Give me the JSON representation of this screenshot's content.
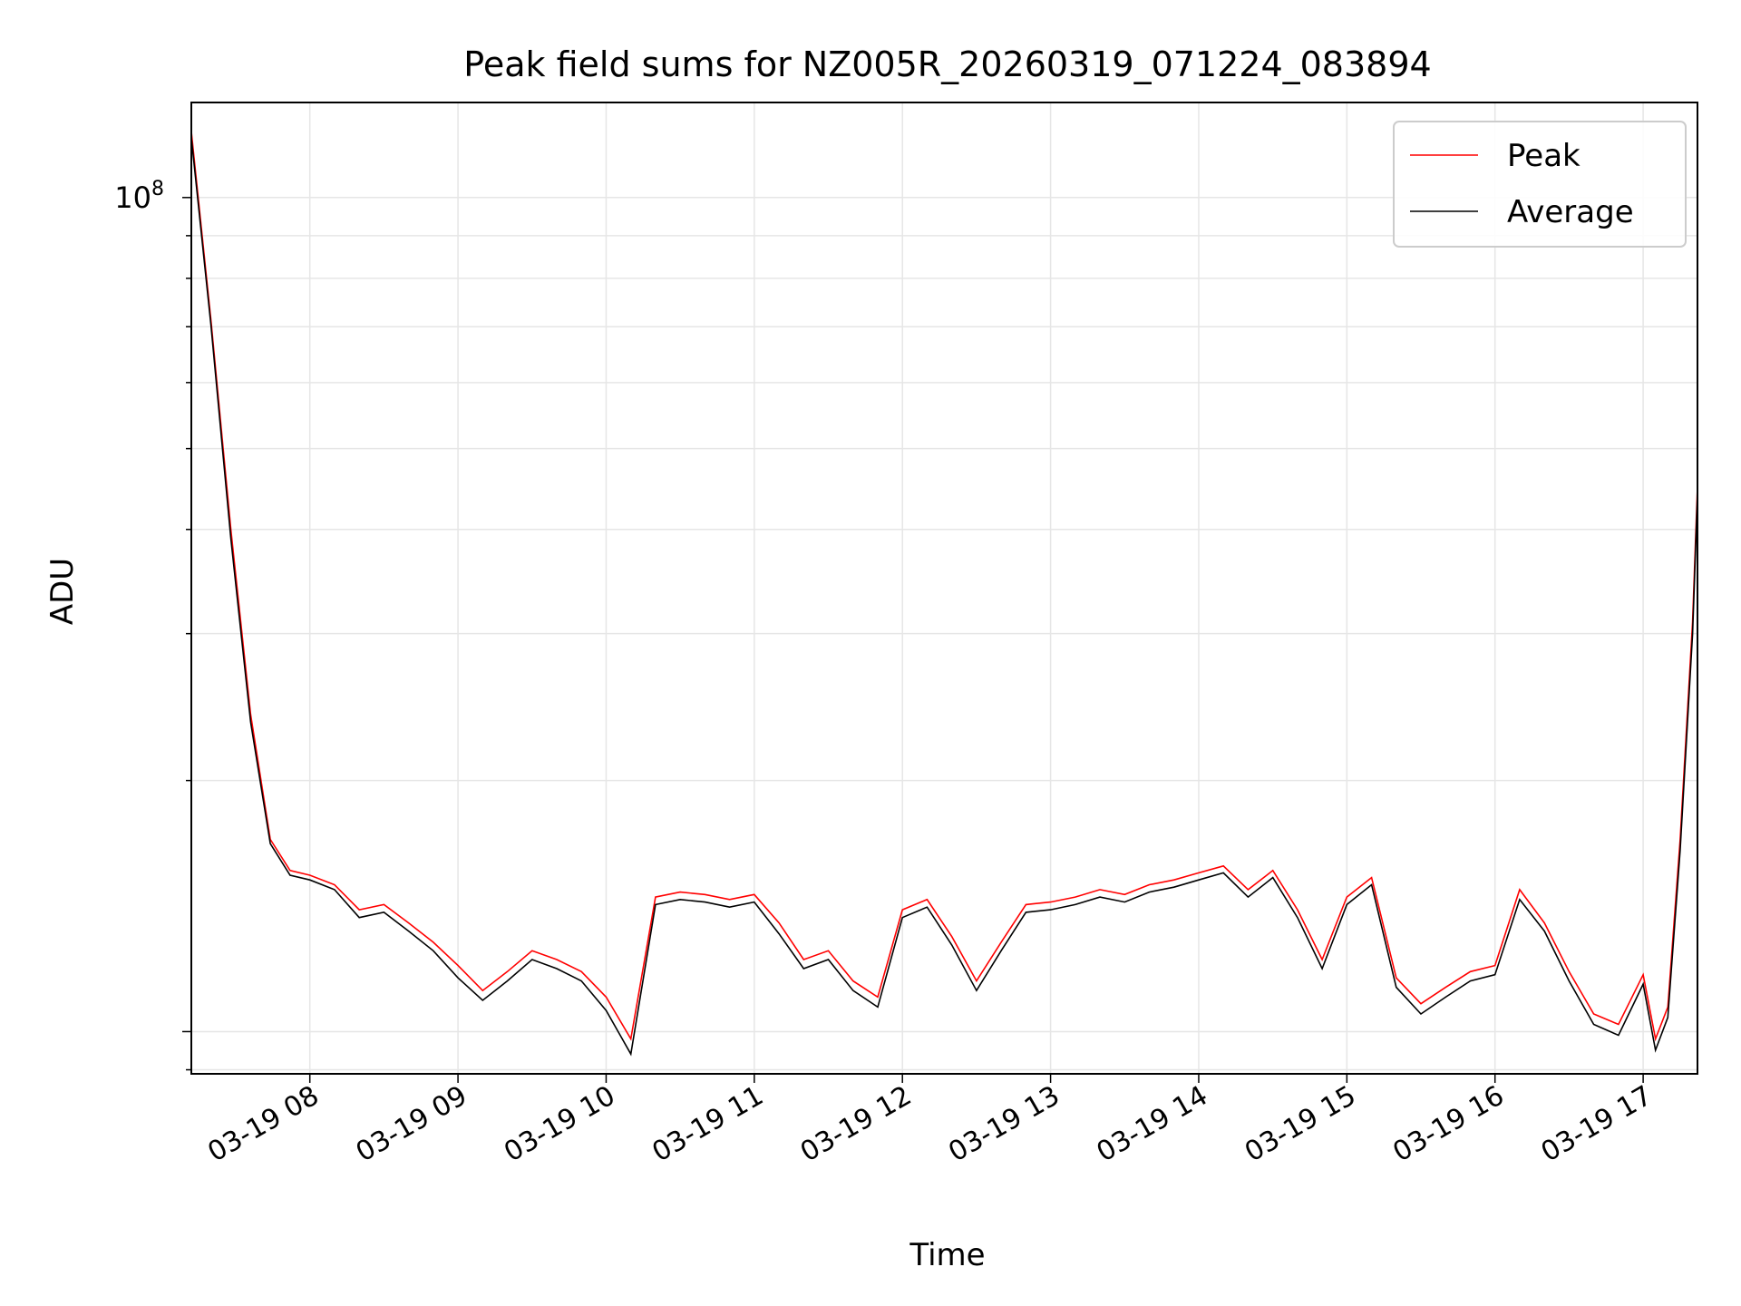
{
  "chart_data": {
    "type": "line",
    "title": "Peak field sums for NZ005R_20260319_071224_083894",
    "xlabel": "Time",
    "ylabel": "ADU",
    "xlim": [
      "2026-03-19 07:12",
      "2026-03-19 17:22"
    ],
    "ylim": [
      8900000,
      130000000
    ],
    "yscale": "log",
    "grid": true,
    "legend_position": "top-right",
    "x_ticks": [
      "03-19 08",
      "03-19 09",
      "03-19 10",
      "03-19 11",
      "03-19 12",
      "03-19 13",
      "03-19 14",
      "03-19 15",
      "03-19 16",
      "03-19 17"
    ],
    "y_ticks": [
      {
        "value": 100000000,
        "base": "10",
        "exp": "8"
      }
    ],
    "x": [
      "2026-03-19 07:12",
      "2026-03-19 07:20",
      "2026-03-19 07:28",
      "2026-03-19 07:36",
      "2026-03-19 07:44",
      "2026-03-19 07:52",
      "2026-03-19 08:00",
      "2026-03-19 08:10",
      "2026-03-19 08:20",
      "2026-03-19 08:30",
      "2026-03-19 08:40",
      "2026-03-19 08:50",
      "2026-03-19 09:00",
      "2026-03-19 09:10",
      "2026-03-19 09:20",
      "2026-03-19 09:30",
      "2026-03-19 09:40",
      "2026-03-19 09:50",
      "2026-03-19 10:00",
      "2026-03-19 10:10",
      "2026-03-19 10:20",
      "2026-03-19 10:30",
      "2026-03-19 10:40",
      "2026-03-19 10:50",
      "2026-03-19 11:00",
      "2026-03-19 11:10",
      "2026-03-19 11:20",
      "2026-03-19 11:30",
      "2026-03-19 11:40",
      "2026-03-19 11:50",
      "2026-03-19 12:00",
      "2026-03-19 12:10",
      "2026-03-19 12:20",
      "2026-03-19 12:30",
      "2026-03-19 12:40",
      "2026-03-19 12:50",
      "2026-03-19 13:00",
      "2026-03-19 13:10",
      "2026-03-19 13:20",
      "2026-03-19 13:30",
      "2026-03-19 13:40",
      "2026-03-19 13:50",
      "2026-03-19 14:00",
      "2026-03-19 14:10",
      "2026-03-19 14:20",
      "2026-03-19 14:30",
      "2026-03-19 14:40",
      "2026-03-19 14:50",
      "2026-03-19 15:00",
      "2026-03-19 15:10",
      "2026-03-19 15:20",
      "2026-03-19 15:30",
      "2026-03-19 15:40",
      "2026-03-19 15:50",
      "2026-03-19 16:00",
      "2026-03-19 16:10",
      "2026-03-19 16:20",
      "2026-03-19 16:30",
      "2026-03-19 16:40",
      "2026-03-19 16:50",
      "2026-03-19 17:00",
      "2026-03-19 17:05",
      "2026-03-19 17:10",
      "2026-03-19 17:15",
      "2026-03-19 17:20",
      "2026-03-19 17:22"
    ],
    "series": [
      {
        "name": "Peak",
        "color": "#ff0000",
        "values": [
          120000000,
          71000000,
          40000000,
          24000000,
          17000000,
          15600000,
          15400000,
          15000000,
          14000000,
          14200000,
          13500000,
          12800000,
          12000000,
          11200000,
          11800000,
          12500000,
          12200000,
          11800000,
          11000000,
          9800000,
          14500000,
          14700000,
          14600000,
          14400000,
          14600000,
          13500000,
          12200000,
          12500000,
          11500000,
          11000000,
          14000000,
          14400000,
          13000000,
          11500000,
          12800000,
          14200000,
          14300000,
          14500000,
          14800000,
          14600000,
          15000000,
          15200000,
          15500000,
          15800000,
          14800000,
          15600000,
          14000000,
          12200000,
          14500000,
          15300000,
          11600000,
          10800000,
          11300000,
          11800000,
          12000000,
          14800000,
          13500000,
          11800000,
          10500000,
          10200000,
          11700000,
          9800000,
          10700000,
          17000000,
          31000000,
          45000000
        ]
      },
      {
        "name": "Average",
        "color": "#000000",
        "values": [
          118000000,
          70000000,
          39000000,
          23500000,
          16800000,
          15400000,
          15200000,
          14800000,
          13700000,
          13900000,
          13200000,
          12500000,
          11600000,
          10900000,
          11500000,
          12200000,
          11900000,
          11500000,
          10600000,
          9400000,
          14200000,
          14400000,
          14300000,
          14100000,
          14300000,
          13100000,
          11900000,
          12200000,
          11200000,
          10700000,
          13700000,
          14100000,
          12700000,
          11200000,
          12500000,
          13900000,
          14000000,
          14200000,
          14500000,
          14300000,
          14700000,
          14900000,
          15200000,
          15500000,
          14500000,
          15300000,
          13700000,
          11900000,
          14200000,
          15000000,
          11300000,
          10500000,
          11000000,
          11500000,
          11700000,
          14400000,
          13200000,
          11500000,
          10200000,
          9900000,
          11400000,
          9500000,
          10400000,
          16500000,
          30000000,
          44000000
        ]
      }
    ]
  }
}
